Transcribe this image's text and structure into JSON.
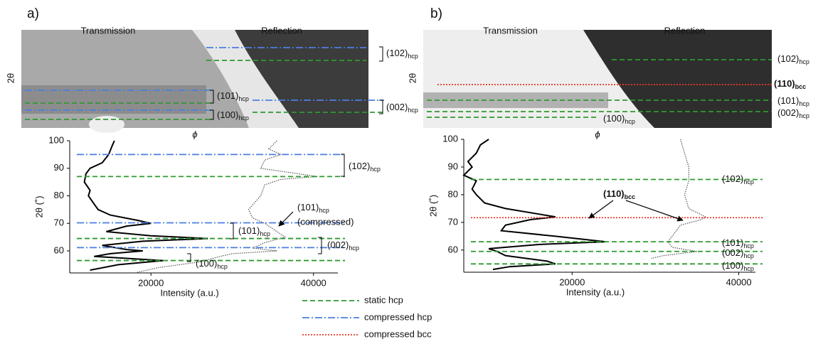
{
  "legend": {
    "entries": [
      {
        "name": "static hcp",
        "color": "#2e9a2e",
        "dash": "7 4"
      },
      {
        "name": "compressed hcp",
        "color": "#4b7fe0",
        "dash": "10 3 2 3"
      },
      {
        "name": "compressed bcc",
        "color": "#e8392a",
        "dash": "2 2"
      }
    ]
  },
  "chart_data": [
    {
      "type": "line",
      "panel_label": "a)",
      "image": {
        "left_label": "Transmission",
        "right_label": "Reflection",
        "y_label": "2θ",
        "x_label": "ϕ",
        "peak_labels": [
          {
            "text": "(102)",
            "sub": "hcp"
          },
          {
            "text": "(101)",
            "sub": "hcp"
          },
          {
            "text": "(002)",
            "sub": "hcp"
          },
          {
            "text": "(100)",
            "sub": "hcp"
          }
        ]
      },
      "ylabel": "2θ (˚)",
      "xlabel": "Intensity (a.u.)",
      "xlim": [
        10000,
        43000
      ],
      "xticks": [
        20000,
        40000
      ],
      "ylim": [
        52,
        100
      ],
      "yticks": [
        60,
        70,
        80,
        90,
        100
      ],
      "hlines": [
        {
          "value": 95,
          "style": 1
        },
        {
          "value": 87,
          "style": 0
        },
        {
          "value": 70.2,
          "style": 1
        },
        {
          "value": 64.5,
          "style": 0
        },
        {
          "value": 61.2,
          "style": 1
        },
        {
          "value": 56.5,
          "style": 0
        }
      ],
      "peak_labels": [
        {
          "text": "(102)",
          "sub": "hcp"
        },
        {
          "text": "(101)",
          "sub": "hcp"
        },
        {
          "text": "(002)",
          "sub": "hcp"
        },
        {
          "text": "(100)",
          "sub": "hcp"
        }
      ],
      "annotations": [
        {
          "text": "(101)",
          "sub": "hcp",
          "note": "(compressed)"
        }
      ],
      "series": [
        {
          "color": "#000000",
          "style": "solid",
          "two_theta": [
            100,
            98,
            95,
            92,
            90,
            88,
            85,
            82,
            80,
            77,
            75,
            73,
            71,
            70,
            69,
            67,
            65.5,
            64.5,
            63.5,
            62,
            60.5,
            60,
            59,
            58,
            56.5,
            55,
            53
          ],
          "intensity": [
            15500,
            15200,
            14800,
            14000,
            12500,
            12000,
            11800,
            12500,
            12300,
            13000,
            13500,
            15000,
            18500,
            20000,
            17000,
            14500,
            20000,
            27000,
            19000,
            14000,
            17000,
            19000,
            15000,
            13000,
            21500,
            16000,
            12500
          ]
        },
        {
          "color": "#555555",
          "style": "dotted",
          "two_theta": [
            100,
            97,
            95,
            93,
            90,
            87,
            86,
            84,
            80,
            75,
            72,
            70,
            68,
            65,
            63,
            61,
            60,
            59,
            58,
            56,
            54,
            52
          ],
          "intensity": [
            35500,
            34500,
            36000,
            34000,
            33500,
            40500,
            36000,
            34000,
            33500,
            32000,
            32500,
            34000,
            35000,
            36500,
            34000,
            32500,
            35500,
            30000,
            28500,
            26000,
            21000,
            18000
          ]
        }
      ]
    },
    {
      "type": "line",
      "panel_label": "b)",
      "image": {
        "left_label": "Transmission",
        "right_label": "Reflection",
        "y_label": "2θ",
        "x_label": "ϕ",
        "peak_labels": [
          {
            "text": "(102)",
            "sub": "hcp"
          },
          {
            "text": "(110)",
            "sub": "bcc"
          },
          {
            "text": "(101)",
            "sub": "hcp"
          },
          {
            "text": "(002)",
            "sub": "hcp"
          },
          {
            "text": "(100)",
            "sub": "hcp"
          }
        ]
      },
      "xlabel": "Intensity (a.u.)",
      "ylabel": "2θ (˚)",
      "xlim": [
        7000,
        42000
      ],
      "xticks": [
        20000,
        40000
      ],
      "ylim": [
        52,
        100
      ],
      "yticks": [
        60,
        70,
        80,
        90,
        100
      ],
      "hlines": [
        {
          "value": 85.5,
          "style": 0
        },
        {
          "value": 71.7,
          "style": 2
        },
        {
          "value": 63,
          "style": 0
        },
        {
          "value": 59.5,
          "style": 0
        },
        {
          "value": 55,
          "style": 0
        }
      ],
      "peak_labels": [
        {
          "text": "(102)",
          "sub": "hcp"
        },
        {
          "text": "(101)",
          "sub": "hcp"
        },
        {
          "text": "(002)",
          "sub": "hcp"
        },
        {
          "text": "(100)",
          "sub": "hcp"
        }
      ],
      "annotations": [
        {
          "text": "(110)",
          "sub": "bcc"
        }
      ],
      "series": [
        {
          "color": "#000000",
          "style": "solid",
          "two_theta": [
            100,
            98,
            95,
            92,
            90,
            87,
            85,
            82,
            80,
            77,
            75,
            73,
            72,
            71,
            69,
            67,
            65,
            63,
            62,
            60.5,
            59.5,
            58,
            56,
            55,
            54,
            53
          ],
          "intensity": [
            10000,
            9000,
            8500,
            7500,
            8000,
            7000,
            8500,
            8000,
            8500,
            9500,
            12000,
            16000,
            18000,
            15000,
            12000,
            11500,
            18000,
            24000,
            16000,
            10000,
            11000,
            12000,
            17000,
            18000,
            12500,
            10500
          ]
        },
        {
          "color": "#555555",
          "style": "dotted",
          "two_theta": [
            100,
            95,
            90,
            85,
            80,
            75,
            72,
            71,
            69,
            65,
            63,
            61,
            59.5,
            58,
            57
          ],
          "intensity": [
            33000,
            33500,
            34000,
            34000,
            33500,
            34000,
            36000,
            35500,
            33000,
            32000,
            31500,
            32000,
            35000,
            31000,
            29500
          ]
        }
      ]
    }
  ]
}
